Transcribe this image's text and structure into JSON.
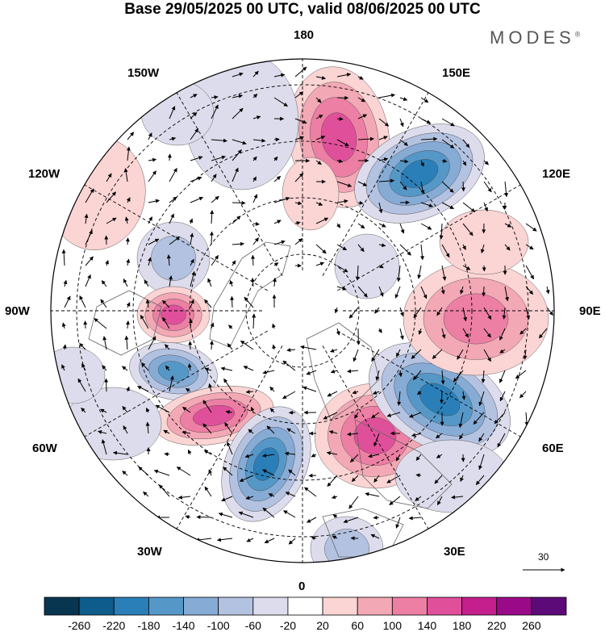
{
  "header": {
    "title": "Base 29/05/2025 00 UTC, valid 08/06/2025 00 UTC",
    "brand": "MODES",
    "brand_mark": "®"
  },
  "map": {
    "projection": "north-polar-stereographic",
    "longitude_labels": {
      "top": "180",
      "bottom": "0",
      "left": "90W",
      "right": "90E",
      "upper_left_1": "150W",
      "upper_left_2": "120W",
      "lower_left_1": "60W",
      "lower_left_2": "30W",
      "upper_right_1": "150E",
      "upper_right_2": "120E",
      "lower_right_1": "60E",
      "lower_right_2": "30E"
    },
    "wind_reference": {
      "value": "30"
    },
    "colors": {
      "negative": [
        "#08354f",
        "#0d5c8c",
        "#2a7fb8",
        "#5598c8",
        "#86abd5",
        "#b3c2e0",
        "#dcdcec"
      ],
      "neutral": "#ffffff",
      "positive": [
        "#fbd4d4",
        "#f3a8b6",
        "#ec7fa3",
        "#e0509a",
        "#c41f8c",
        "#9a0a88",
        "#5c0a78"
      ]
    }
  },
  "colorbar": {
    "ticks": [
      "-260",
      "-220",
      "-180",
      "-140",
      "-100",
      "-60",
      "-20",
      "20",
      "60",
      "100",
      "140",
      "180",
      "220",
      "260"
    ]
  }
}
